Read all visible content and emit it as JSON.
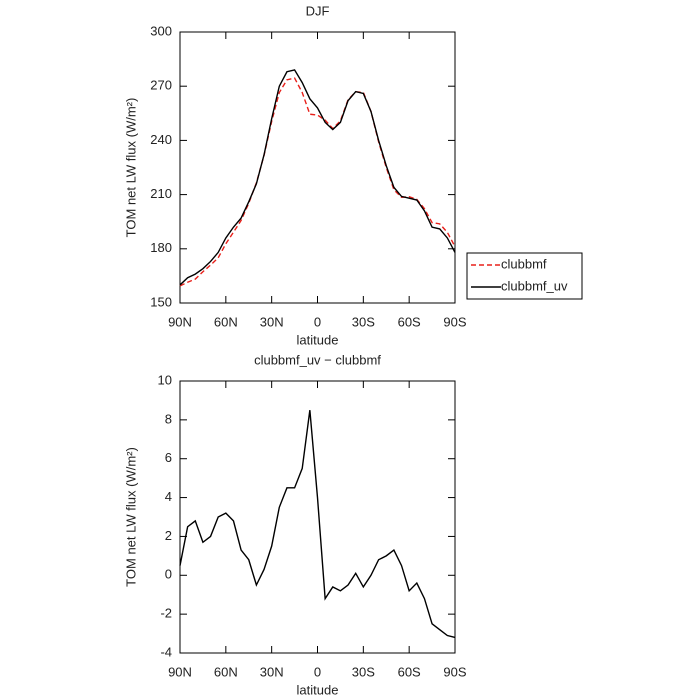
{
  "chart_data": [
    {
      "type": "line",
      "title": "DJF",
      "x_label": "latitude",
      "y_label": "TOM net LW flux (W/m²)",
      "x": [
        90,
        85,
        80,
        75,
        70,
        65,
        60,
        55,
        50,
        45,
        40,
        35,
        30,
        25,
        20,
        15,
        10,
        5,
        0,
        -5,
        -10,
        -15,
        -20,
        -25,
        -30,
        -35,
        -40,
        -45,
        -50,
        -55,
        -60,
        -65,
        -70,
        -75,
        -80,
        -85,
        -90
      ],
      "xlim": [
        90,
        -90
      ],
      "xticks": [
        {
          "value": 90,
          "label": "90N"
        },
        {
          "value": 60,
          "label": "60N"
        },
        {
          "value": 30,
          "label": "30N"
        },
        0,
        {
          "value": -30,
          "label": "30S"
        },
        {
          "value": -60,
          "label": "60S"
        },
        {
          "value": -90,
          "label": "90S"
        }
      ],
      "ylim": [
        150,
        300
      ],
      "yticks": [
        150,
        180,
        210,
        240,
        270,
        300
      ],
      "legend": "outside-right",
      "series": [
        {
          "name": "clubbmf",
          "color": "#e8201a",
          "dashed": true,
          "values": [
            159.5,
            161.5,
            163.2,
            167.3,
            171,
            175,
            182.8,
            189.2,
            195.7,
            205.2,
            216.5,
            231.7,
            250.5,
            266.5,
            273.5,
            274.5,
            266.5,
            254.5,
            254,
            251.2,
            246.6,
            250.8,
            262.5,
            266.9,
            266.6,
            256,
            239.2,
            225,
            212.7,
            208.5,
            208.8,
            207.4,
            202.2,
            194.5,
            193.8,
            189.1,
            181.2
          ]
        },
        {
          "name": "clubbmf_uv",
          "color": "#000000",
          "dashed": false,
          "values": [
            160,
            164,
            166,
            169,
            173,
            178,
            186,
            192,
            197,
            206,
            216,
            232,
            252,
            270,
            278,
            279,
            272,
            263,
            258,
            250,
            246,
            250,
            262,
            267,
            266,
            256,
            240,
            226,
            214,
            209,
            208,
            207,
            201,
            192,
            191,
            186,
            178
          ]
        }
      ]
    },
    {
      "type": "line",
      "title": "clubbmf_uv − clubbmf",
      "x_label": "latitude",
      "y_label": "TOM net LW flux (W/m²)",
      "x": [
        90,
        85,
        80,
        75,
        70,
        65,
        60,
        55,
        50,
        45,
        40,
        35,
        30,
        25,
        20,
        15,
        10,
        5,
        0,
        -5,
        -10,
        -15,
        -20,
        -25,
        -30,
        -35,
        -40,
        -45,
        -50,
        -55,
        -60,
        -65,
        -70,
        -75,
        -80,
        -85,
        -90
      ],
      "xlim": [
        90,
        -90
      ],
      "xticks": [
        {
          "value": 90,
          "label": "90N"
        },
        {
          "value": 60,
          "label": "60N"
        },
        {
          "value": 30,
          "label": "30N"
        },
        0,
        {
          "value": -30,
          "label": "30S"
        },
        {
          "value": -60,
          "label": "60S"
        },
        {
          "value": -90,
          "label": "90S"
        }
      ],
      "ylim": [
        -4,
        10
      ],
      "yticks": [
        -4,
        -2,
        0,
        2,
        4,
        6,
        8,
        10
      ],
      "color": "#000000",
      "values": [
        0.5,
        2.5,
        2.8,
        1.7,
        2,
        3,
        3.2,
        2.8,
        1.3,
        0.8,
        -0.5,
        0.3,
        1.5,
        3.5,
        4.5,
        4.5,
        5.5,
        8.5,
        4,
        -1.2,
        -0.6,
        -0.8,
        -0.5,
        0.1,
        -0.6,
        0,
        0.8,
        1,
        1.3,
        0.5,
        -0.8,
        -0.4,
        -1.2,
        -2.5,
        -2.8,
        -3.1,
        -3.2
      ]
    }
  ]
}
